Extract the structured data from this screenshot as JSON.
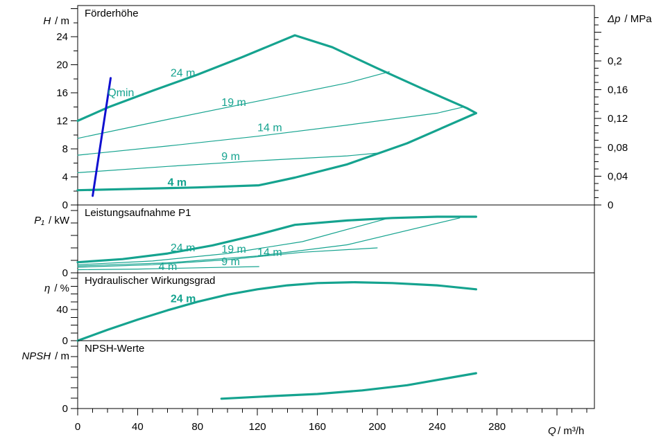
{
  "colors": {
    "curve": "#15A38F",
    "qmin": "#1010D0",
    "axis": "#000000"
  },
  "x_axis": {
    "label_var": "Q",
    "label_unit": "/ m³/h",
    "ticks": [
      "0",
      "40",
      "80",
      "120",
      "160",
      "200",
      "240",
      "280"
    ],
    "range": [
      0,
      345
    ]
  },
  "chart_data": [
    {
      "type": "line",
      "title": "Förderhöhe",
      "ylabel_var": "H",
      "ylabel_unit": "/ m",
      "right_label_var": "Δp",
      "right_label_unit": "/ MPa",
      "y_ticks": [
        "0",
        "4",
        "8",
        "12",
        "16",
        "20",
        "24"
      ],
      "right_ticks": [
        "0",
        "0,04",
        "0,08",
        "0,12",
        "0,16",
        "0,2"
      ],
      "ylim": [
        0,
        24
      ],
      "series": [
        {
          "name": "24 m",
          "x": [
            0,
            20,
            50,
            80,
            110,
            145,
            170,
            200,
            230,
            260,
            266
          ],
          "y": [
            12,
            13.9,
            16.3,
            18.6,
            21.1,
            24.2,
            22.5,
            19.5,
            16.6,
            13.8,
            13.1
          ]
        },
        {
          "name": "19 m",
          "x": [
            0,
            60,
            120,
            180,
            208
          ],
          "y": [
            9.5,
            12.2,
            14.8,
            17.4,
            19.0
          ]
        },
        {
          "name": "14 m",
          "x": [
            0,
            60,
            120,
            180,
            240,
            258
          ],
          "y": [
            7.1,
            8.4,
            9.8,
            11.4,
            13.1,
            14.0
          ]
        },
        {
          "name": "9 m",
          "x": [
            0,
            60,
            120,
            180,
            200
          ],
          "y": [
            4.6,
            5.5,
            6.3,
            7.0,
            7.4
          ]
        },
        {
          "name": "4 m",
          "x": [
            0,
            40,
            80,
            121,
            145,
            180,
            220,
            266
          ],
          "y": [
            2.1,
            2.3,
            2.5,
            2.8,
            3.9,
            5.8,
            8.8,
            13.1
          ]
        }
      ],
      "qmin": {
        "name": "Qmin",
        "x": [
          10,
          22
        ],
        "y": [
          1.3,
          18.1
        ]
      }
    },
    {
      "type": "line",
      "title": "Leistungsaufnahme P1",
      "ylabel_var": "P₁",
      "ylabel_unit": "/ kW",
      "y_ticks": [
        "0"
      ],
      "ylim": [
        0,
        10
      ],
      "series": [
        {
          "name": "24 m",
          "x": [
            0,
            30,
            60,
            90,
            120,
            145,
            180,
            210,
            240,
            266
          ],
          "y": [
            1.7,
            2.2,
            3.1,
            4.4,
            6.1,
            7.7,
            8.4,
            8.8,
            9.0,
            9.0
          ]
        },
        {
          "name": "19 m",
          "x": [
            0,
            50,
            100,
            150,
            208
          ],
          "y": [
            1.3,
            1.9,
            3.1,
            5.0,
            8.8
          ]
        },
        {
          "name": "14 m",
          "x": [
            0,
            60,
            120,
            180,
            255
          ],
          "y": [
            1.1,
            1.6,
            2.7,
            4.5,
            8.8
          ]
        },
        {
          "name": "9 m",
          "x": [
            0,
            50,
            100,
            150,
            200
          ],
          "y": [
            0.9,
            1.3,
            2.1,
            3.3,
            4.0
          ]
        },
        {
          "name": "4 m",
          "x": [
            0,
            40,
            80,
            121
          ],
          "y": [
            0.5,
            0.6,
            0.8,
            1.0
          ]
        }
      ]
    },
    {
      "type": "line",
      "title": "Hydraulischer Wirkungsgrad",
      "ylabel_var": "η",
      "ylabel_unit": "/ %",
      "y_ticks": [
        "0",
        "40"
      ],
      "ylim": [
        0,
        80
      ],
      "series": [
        {
          "name": "24 m",
          "x": [
            0,
            20,
            40,
            60,
            80,
            100,
            120,
            140,
            160,
            185,
            210,
            240,
            266
          ],
          "y": [
            0,
            14,
            27,
            39,
            50,
            59,
            66,
            71,
            74,
            75,
            74,
            71,
            66
          ]
        }
      ]
    },
    {
      "type": "line",
      "title": "NPSH-Werte",
      "ylabel_var": "NPSH",
      "ylabel_unit": "/ m",
      "y_ticks": [
        "0"
      ],
      "ylim": [
        0,
        10
      ],
      "series": [
        {
          "name": "",
          "x": [
            96,
            130,
            160,
            190,
            220,
            250,
            266
          ],
          "y": [
            1.9,
            2.4,
            2.8,
            3.5,
            4.5,
            6.0,
            6.8
          ]
        }
      ]
    }
  ],
  "curve_labels": [
    {
      "panel": 0,
      "text": "24 m",
      "x": 62,
      "y": 18.8,
      "bold": false
    },
    {
      "panel": 0,
      "text": "19 m",
      "x": 96,
      "y": 14.6,
      "bold": false
    },
    {
      "panel": 0,
      "text": "14 m",
      "x": 120,
      "y": 11.0,
      "bold": false
    },
    {
      "panel": 0,
      "text": "9 m",
      "x": 96,
      "y": 6.9,
      "bold": false
    },
    {
      "panel": 0,
      "text": "4 m",
      "x": 60,
      "y": 3.2,
      "bold": true
    },
    {
      "panel": 0,
      "text": "Qmin",
      "x": 20,
      "y": 16.0,
      "bold": false
    },
    {
      "panel": 1,
      "text": "24 m",
      "x": 62,
      "y": 4.0,
      "bold": false
    },
    {
      "panel": 1,
      "text": "19 m",
      "x": 96,
      "y": 3.8,
      "bold": false
    },
    {
      "panel": 1,
      "text": "14 m",
      "x": 120,
      "y": 3.3,
      "bold": false
    },
    {
      "panel": 1,
      "text": "9 m",
      "x": 96,
      "y": 1.8,
      "bold": false
    },
    {
      "panel": 1,
      "text": "4 m",
      "x": 54,
      "y": 1.0,
      "bold": false
    },
    {
      "panel": 2,
      "text": "24 m",
      "x": 62,
      "y": 54,
      "bold": true
    }
  ]
}
